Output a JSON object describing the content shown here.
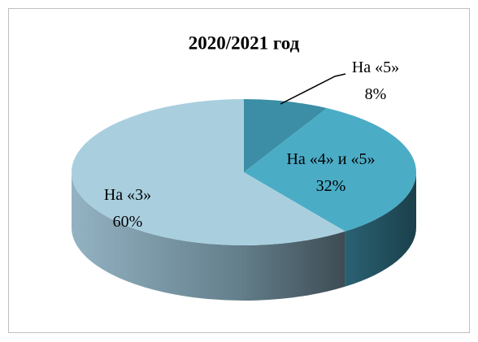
{
  "chart_data": {
    "type": "pie",
    "title": "2020/2021 год",
    "categories": [
      "На «5»",
      "На «4» и «5»",
      "На «3»"
    ],
    "values": [
      8,
      32,
      60
    ],
    "value_labels": [
      "8%",
      "32%",
      "60%"
    ],
    "colors": [
      "#3b8ea5",
      "#4bacc6",
      "#a9cfdf"
    ]
  }
}
